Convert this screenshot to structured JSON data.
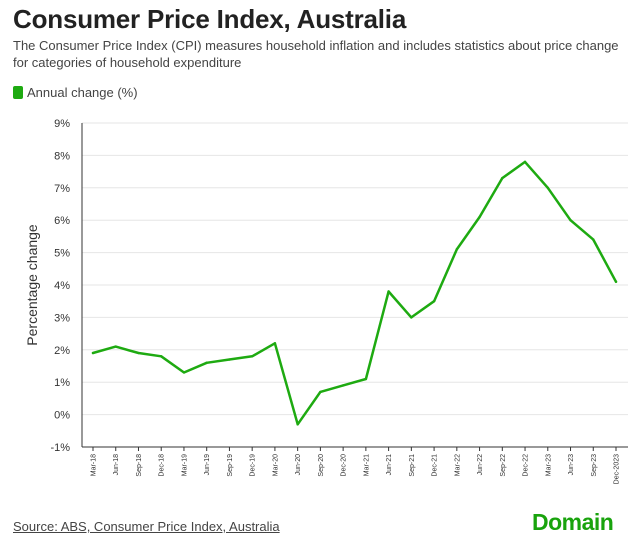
{
  "colors": {
    "series": "#1eaa11",
    "logo": "#19a30d",
    "grid": "#e6e6e6",
    "axis": "#333333"
  },
  "chart_data": {
    "type": "line",
    "title": "Consumer Price Index, Australia",
    "subtitle": "The Consumer Price Index (CPI) measures household inflation and includes statistics about price change for categories of household expenditure",
    "xlabel": "",
    "ylabel": "Percentage change",
    "ylim": [
      -1,
      9
    ],
    "yticks": [
      -1,
      0,
      1,
      2,
      3,
      4,
      5,
      6,
      7,
      8,
      9
    ],
    "ytick_labels": [
      "-1%",
      "0%",
      "1%",
      "2%",
      "3%",
      "4%",
      "5%",
      "6%",
      "7%",
      "8%",
      "9%"
    ],
    "legend_position": "top-left",
    "grid": true,
    "categories": [
      "Mar-18",
      "Jun-18",
      "Sep-18",
      "Dec-18",
      "Mar-19",
      "Jun-19",
      "Sep-19",
      "Dec-19",
      "Mar-20",
      "Jun-20",
      "Sep-20",
      "Dec-20",
      "Mar-21",
      "Jun-21",
      "Sep-21",
      "Dec-21",
      "Mar-22",
      "Jun-22",
      "Sep-22",
      "Dec-22",
      "Mar-23",
      "Jun-23",
      "Sep-23",
      "Dec-2023"
    ],
    "series": [
      {
        "name": "Annual change (%)",
        "values": [
          1.9,
          2.1,
          1.9,
          1.8,
          1.3,
          1.6,
          1.7,
          1.8,
          2.2,
          -0.3,
          0.7,
          0.9,
          1.1,
          3.8,
          3.0,
          3.5,
          5.1,
          6.1,
          7.3,
          7.8,
          7.0,
          6.0,
          5.4,
          4.1
        ]
      }
    ]
  },
  "source": "Source: ABS, Consumer Price Index, Australia",
  "logo": "Domain"
}
